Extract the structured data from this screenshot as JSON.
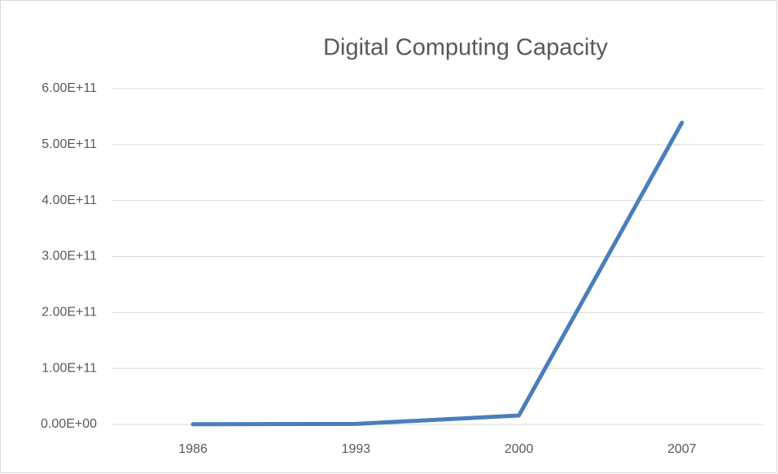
{
  "chart_data": {
    "type": "line",
    "title": "Digital Computing Capacity",
    "categories": [
      "1986",
      "1993",
      "2000",
      "2007"
    ],
    "series": [
      {
        "name": "Digital Computing Capacity",
        "color": "#4a7ebb",
        "values": [
          300000000,
          900000000,
          16000000000,
          539000000000
        ]
      }
    ],
    "ylim": [
      0,
      600000000000
    ],
    "yticks": [
      {
        "value": 0,
        "label": "0.00E+00"
      },
      {
        "value": 100000000000,
        "label": "1.00E+11"
      },
      {
        "value": 200000000000,
        "label": "2.00E+11"
      },
      {
        "value": 300000000000,
        "label": "3.00E+11"
      },
      {
        "value": 400000000000,
        "label": "4.00E+11"
      },
      {
        "value": 500000000000,
        "label": "5.00E+11"
      },
      {
        "value": 600000000000,
        "label": "6.00E+11"
      }
    ],
    "grid": true
  }
}
